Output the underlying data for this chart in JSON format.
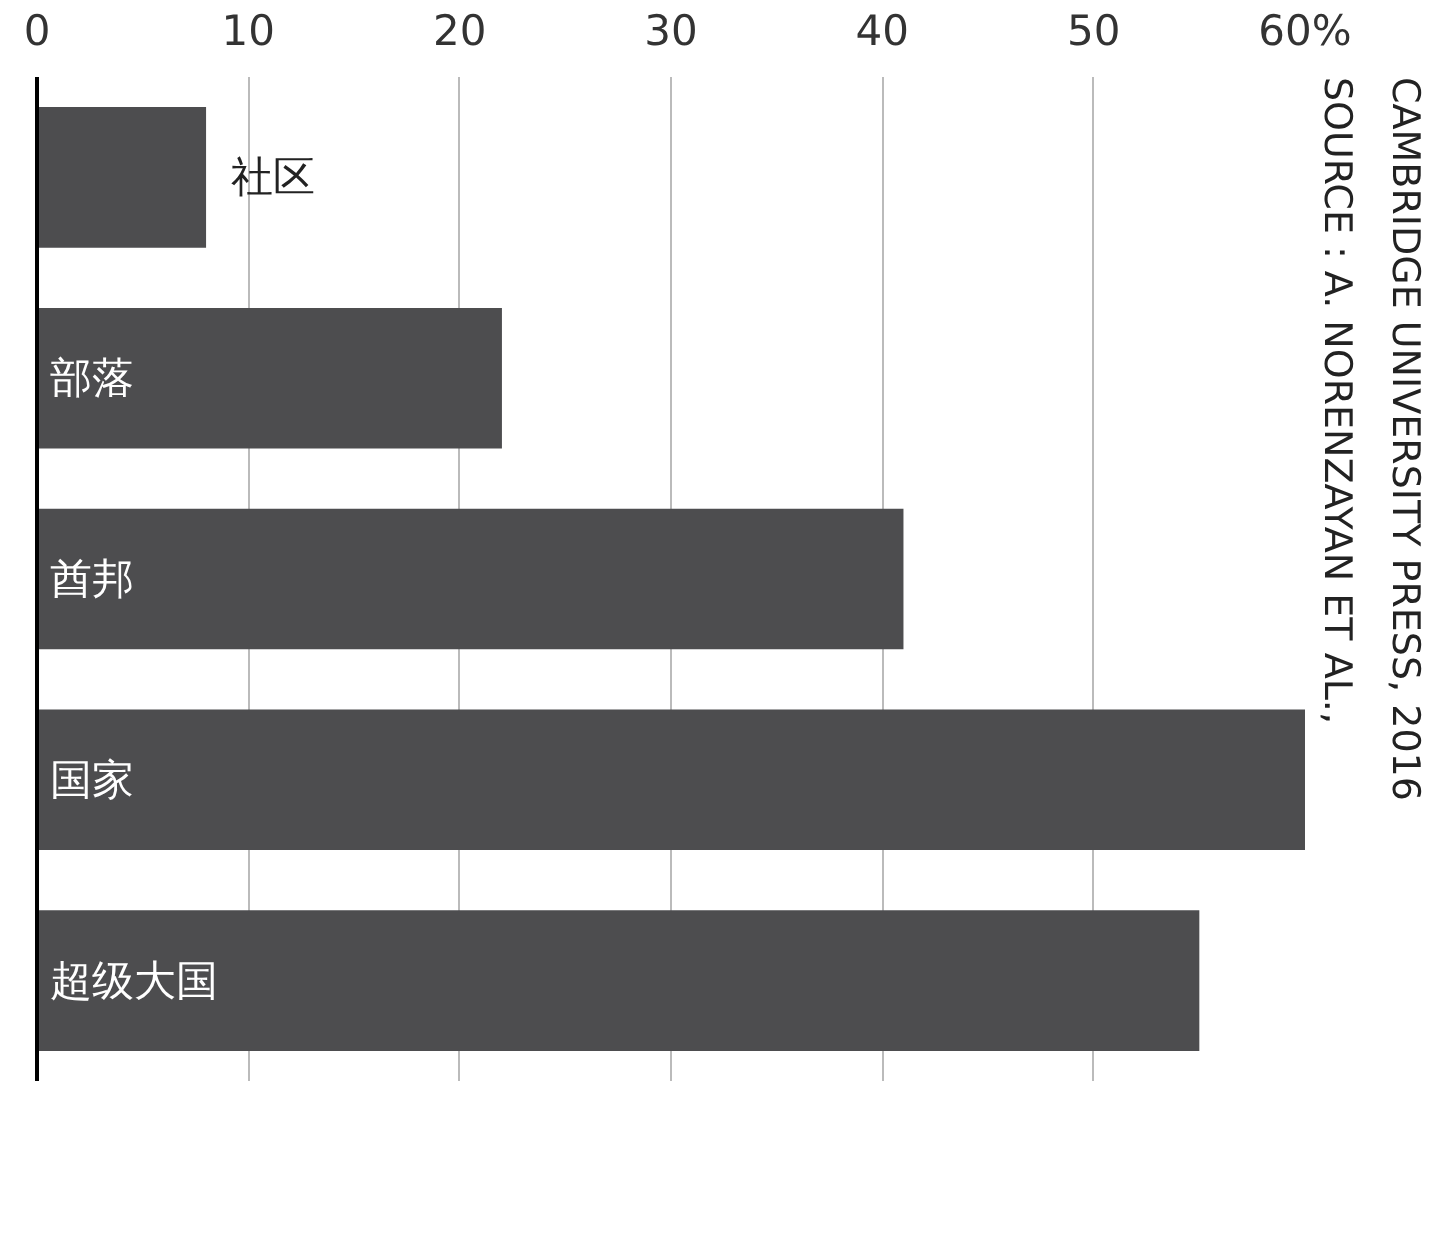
{
  "chart_data": {
    "type": "bar",
    "orientation": "horizontal",
    "categories": [
      "社区",
      "部落",
      "酋邦",
      "国家",
      "超级大国"
    ],
    "values": [
      8,
      22,
      41,
      60,
      55
    ],
    "color": "#4d4d4f",
    "xlim": [
      0,
      60
    ],
    "xticks": [
      0,
      10,
      20,
      30,
      40,
      50,
      {
        "value": 60,
        "label": "60%"
      }
    ],
    "grid": "x",
    "annotations": [
      "SOURCE : A. NORENZAYAN ET AL.,\nCAMBRIDGE UNIVERSITY PRESS, 2016"
    ]
  }
}
